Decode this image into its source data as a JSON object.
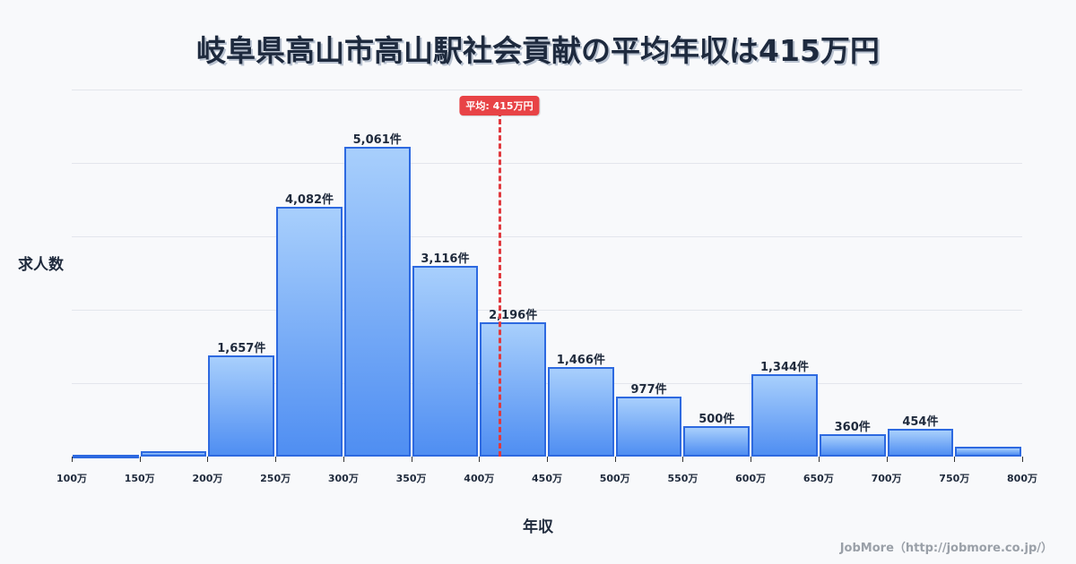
{
  "title": "岐阜県高山市高山駅社会貢献の平均年収は415万円",
  "y_axis_label": "求人数",
  "x_axis_label": "年収",
  "credit": "JobMore（http://jobmore.co.jp/）",
  "mean": {
    "label": "平均: 415万円",
    "value": 415,
    "color": "#e84346"
  },
  "colors": {
    "bar_border": "#2d69e0",
    "bar_top": "#a8cffc",
    "bar_bottom": "#4f8ef2",
    "text": "#1f2a3c"
  },
  "chart_data": {
    "type": "bar",
    "title": "岐阜県高山市高山駅社会貢献の平均年収は415万円",
    "xlabel": "年収",
    "ylabel": "求人数",
    "categories": [
      "100-150万",
      "150-200万",
      "200-250万",
      "250-300万",
      "300-350万",
      "350-400万",
      "400-450万",
      "450-500万",
      "500-550万",
      "550-600万",
      "600-650万",
      "650-700万",
      "700-750万",
      "750-800万"
    ],
    "values": [
      30,
      85,
      1657,
      4082,
      5061,
      3116,
      2196,
      1466,
      977,
      500,
      1344,
      360,
      454,
      160
    ],
    "value_labels": [
      "",
      "",
      "1,657件",
      "4,082件",
      "5,061件",
      "3,116件",
      "2,196件",
      "1,466件",
      "977件",
      "500件",
      "1,344件",
      "360件",
      "454件",
      ""
    ],
    "x_ticks": [
      "100万",
      "150万",
      "200万",
      "250万",
      "300万",
      "350万",
      "400万",
      "450万",
      "500万",
      "550万",
      "600万",
      "650万",
      "700万",
      "750万",
      "800万"
    ],
    "ylim": [
      0,
      6000
    ],
    "grid": true,
    "annotations": [
      {
        "type": "vline",
        "x": 415,
        "label": "平均: 415万円"
      }
    ]
  }
}
